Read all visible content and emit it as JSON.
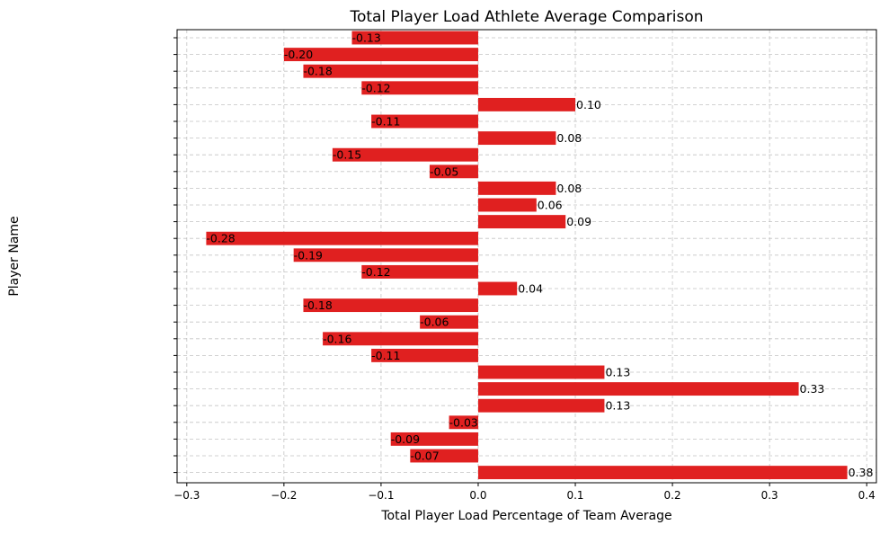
{
  "chart_data": {
    "type": "bar",
    "orientation": "horizontal",
    "title": "Total Player Load Athlete Average Comparison",
    "xlabel": "Total Player Load Percentage of Team Average",
    "ylabel": "Player Name",
    "xlim": [
      -0.31,
      0.41
    ],
    "xticks": [
      -0.3,
      -0.2,
      -0.1,
      0.0,
      0.1,
      0.2,
      0.3,
      0.4
    ],
    "xtick_labels": [
      "−0.3",
      "−0.2",
      "−0.1",
      "0.0",
      "0.1",
      "0.2",
      "0.3",
      "0.4"
    ],
    "grid": true,
    "bar_color": "#e02020",
    "categories": [
      "",
      "",
      "",
      "",
      "",
      "",
      "",
      "",
      "",
      "",
      "",
      "",
      "",
      "",
      "",
      "",
      "",
      "",
      "",
      "",
      "",
      "",
      "",
      "",
      "",
      "",
      ""
    ],
    "values": [
      -0.13,
      -0.2,
      -0.18,
      -0.12,
      0.1,
      -0.11,
      0.08,
      -0.15,
      -0.05,
      0.08,
      0.06,
      0.09,
      -0.28,
      -0.19,
      -0.12,
      0.04,
      -0.18,
      -0.06,
      -0.16,
      -0.11,
      0.13,
      0.33,
      0.13,
      -0.03,
      -0.09,
      -0.07,
      0.38
    ],
    "value_labels": [
      "-0.13",
      "-0.20",
      "-0.18",
      "-0.12",
      "0.10",
      "-0.11",
      "0.08",
      "-0.15",
      "-0.05",
      "0.08",
      "0.06",
      "0.09",
      "-0.28",
      "-0.19",
      "-0.12",
      "0.04",
      "-0.18",
      "-0.06",
      "-0.16",
      "-0.11",
      "0.13",
      "0.33",
      "0.13",
      "-0.03",
      "-0.09",
      "-0.07",
      "0.38"
    ]
  }
}
